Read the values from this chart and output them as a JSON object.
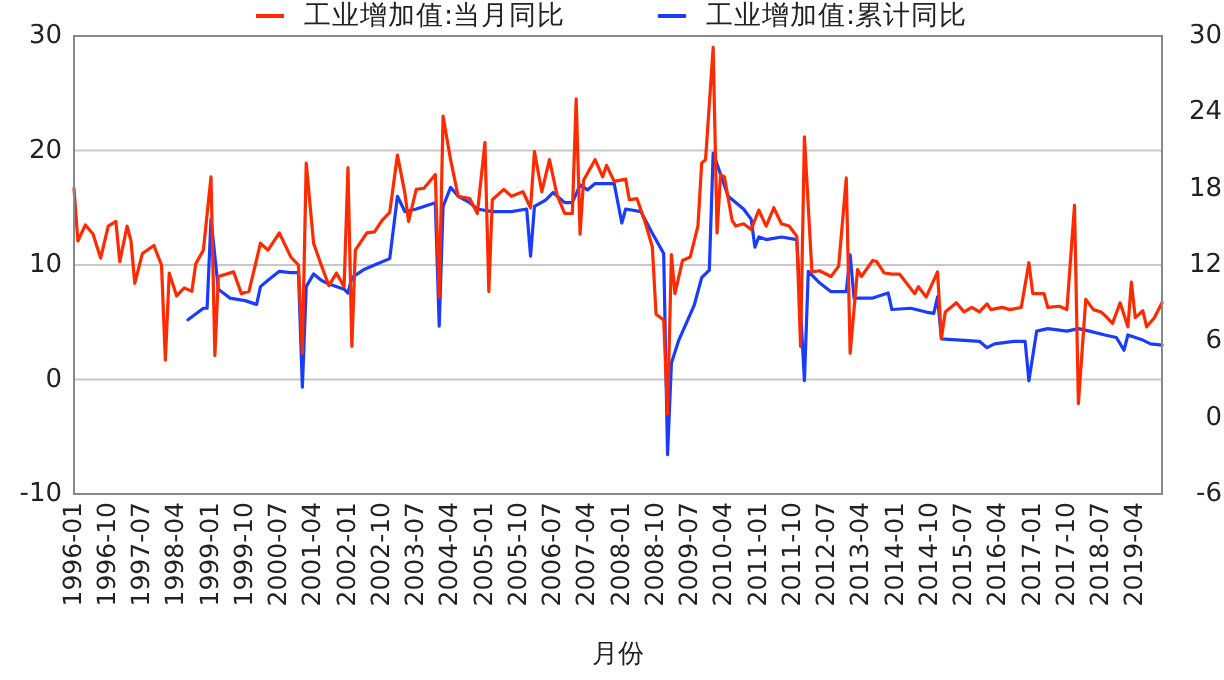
{
  "chart_data": {
    "type": "line",
    "xlabel": "月份",
    "legend": "top",
    "grid": "y",
    "xlim": [
      "1996-01",
      "2019-11"
    ],
    "xticks": [
      "1996-01",
      "1996-10",
      "1997-07",
      "1998-04",
      "1999-01",
      "1999-10",
      "2000-07",
      "2001-04",
      "2002-01",
      "2002-10",
      "2003-07",
      "2004-04",
      "2005-01",
      "2005-10",
      "2006-07",
      "2007-04",
      "2008-01",
      "2008-10",
      "2009-07",
      "2010-04",
      "2011-01",
      "2011-10",
      "2012-07",
      "2013-04",
      "2014-01",
      "2014-10",
      "2015-07",
      "2016-04",
      "2017-01",
      "2017-10",
      "2018-07",
      "2019-04"
    ],
    "ylim": [
      -10,
      30
    ],
    "yticks": [
      -10,
      0,
      10,
      20,
      30
    ],
    "y2lim": [
      -6,
      30
    ],
    "y2ticks": [
      -6,
      0,
      6,
      12,
      18,
      24,
      30
    ],
    "series": [
      {
        "name": "工业增加值:当月同比",
        "color": "#ff2a00",
        "x": [
          "1996-01",
          "1996-02",
          "1996-04",
          "1996-06",
          "1996-08",
          "1996-10",
          "1996-12",
          "1997-01",
          "1997-03",
          "1997-04",
          "1997-05",
          "1997-07",
          "1997-10",
          "1997-12",
          "1998-01",
          "1998-02",
          "1998-04",
          "1998-06",
          "1998-08",
          "1998-09",
          "1998-11",
          "1999-01",
          "1999-02",
          "1999-03",
          "1999-07",
          "1999-09",
          "1999-11",
          "2000-02",
          "2000-04",
          "2000-07",
          "2000-10",
          "2000-12",
          "2001-01",
          "2001-02",
          "2001-04",
          "2001-06",
          "2001-08",
          "2001-10",
          "2001-12",
          "2002-01",
          "2002-02",
          "2002-03",
          "2002-06",
          "2002-08",
          "2002-10",
          "2002-12",
          "2003-02",
          "2003-04",
          "2003-05",
          "2003-07",
          "2003-09",
          "2003-12",
          "2004-01",
          "2004-02",
          "2004-04",
          "2004-06",
          "2004-09",
          "2004-11",
          "2005-01",
          "2005-02",
          "2005-03",
          "2005-06",
          "2005-08",
          "2005-11",
          "2006-01",
          "2006-02",
          "2006-04",
          "2006-06",
          "2006-08",
          "2006-10",
          "2006-12",
          "2007-01",
          "2007-02",
          "2007-03",
          "2007-06",
          "2007-08",
          "2007-09",
          "2007-11",
          "2008-02",
          "2008-03",
          "2008-05",
          "2008-07",
          "2008-09",
          "2008-10",
          "2008-12",
          "2009-01",
          "2009-02",
          "2009-03",
          "2009-05",
          "2009-07",
          "2009-09",
          "2009-10",
          "2009-11",
          "2010-01",
          "2010-02",
          "2010-03",
          "2010-04",
          "2010-06",
          "2010-07",
          "2010-09",
          "2010-11",
          "2011-01",
          "2011-03",
          "2011-05",
          "2011-07",
          "2011-09",
          "2011-11",
          "2011-12",
          "2012-01",
          "2012-03",
          "2012-05",
          "2012-08",
          "2012-10",
          "2012-12",
          "2013-01",
          "2013-03",
          "2013-04",
          "2013-07",
          "2013-08",
          "2013-10",
          "2013-12",
          "2014-02",
          "2014-06",
          "2014-07",
          "2014-09",
          "2014-12",
          "2015-01",
          "2015-02",
          "2015-05",
          "2015-07",
          "2015-09",
          "2015-11",
          "2016-01",
          "2016-02",
          "2016-05",
          "2016-07",
          "2016-10",
          "2016-12",
          "2017-01",
          "2017-04",
          "2017-05",
          "2017-08",
          "2017-10",
          "2017-12",
          "2018-01",
          "2018-03",
          "2018-05",
          "2018-07",
          "2018-08",
          "2018-10",
          "2018-12",
          "2019-02",
          "2019-03",
          "2019-04",
          "2019-06",
          "2019-07",
          "2019-09",
          "2019-11"
        ],
        "values": [
          16.7,
          12.1,
          13.5,
          12.7,
          10.6,
          13.4,
          13.8,
          10.3,
          13.4,
          12.1,
          8.4,
          11.0,
          11.7,
          10.0,
          1.7,
          9.3,
          7.3,
          8.0,
          7.7,
          10.1,
          11.3,
          17.7,
          2.1,
          9.0,
          9.4,
          7.5,
          7.7,
          11.9,
          11.3,
          12.8,
          10.7,
          10.0,
          2.3,
          18.9,
          11.9,
          10.0,
          8.2,
          9.3,
          8.1,
          18.5,
          2.9,
          11.3,
          12.8,
          12.9,
          13.9,
          14.6,
          19.6,
          16.3,
          13.8,
          16.6,
          16.7,
          17.9,
          7.2,
          23.0,
          19.2,
          16.0,
          15.8,
          14.5,
          20.7,
          7.7,
          15.7,
          16.6,
          16.0,
          16.4,
          15.0,
          19.9,
          16.4,
          19.2,
          16.1,
          14.5,
          14.5,
          24.5,
          12.7,
          17.4,
          19.2,
          17.7,
          18.7,
          17.3,
          17.5,
          15.7,
          15.8,
          13.9,
          11.6,
          5.7,
          5.2,
          -3.0,
          10.9,
          7.5,
          10.4,
          10.7,
          13.4,
          18.9,
          19.2,
          29.0,
          12.8,
          17.9,
          17.7,
          13.9,
          13.4,
          13.6,
          13.1,
          14.8,
          13.4,
          15.0,
          13.6,
          13.4,
          12.5,
          2.9,
          21.2,
          9.4,
          9.5,
          9.0,
          9.9,
          17.6,
          2.3,
          9.6,
          9.0,
          10.4,
          10.3,
          9.3,
          9.2,
          9.2,
          7.5,
          8.1,
          7.2,
          9.4,
          3.6,
          5.9,
          6.7,
          5.9,
          6.3,
          5.9,
          6.6,
          6.1,
          6.3,
          6.1,
          6.3,
          10.2,
          7.5,
          7.5,
          6.3,
          6.4,
          6.1,
          15.2,
          -2.1,
          7.0,
          6.1,
          5.9,
          5.6,
          4.9,
          6.7,
          4.6,
          8.5,
          5.4,
          6.0,
          4.6,
          5.4,
          6.7
        ]
      },
      {
        "name": "工业增加值:累计同比",
        "color": "#1a3cff",
        "axis": "y2",
        "x": [
          "1998-07",
          "1998-11",
          "1998-12",
          "1999-01",
          "1999-03",
          "1999-06",
          "1999-10",
          "2000-01",
          "2000-02",
          "2000-04",
          "2000-07",
          "2000-10",
          "2000-12",
          "2001-01",
          "2001-02",
          "2001-04",
          "2001-06",
          "2001-08",
          "2001-12",
          "2002-01",
          "2002-02",
          "2002-05",
          "2002-08",
          "2002-12",
          "2003-02",
          "2003-04",
          "2003-07",
          "2003-12",
          "2004-01",
          "2004-02",
          "2004-04",
          "2004-06",
          "2004-09",
          "2004-11",
          "2005-03",
          "2005-08",
          "2005-12",
          "2006-01",
          "2006-02",
          "2006-05",
          "2006-07",
          "2006-10",
          "2006-12",
          "2007-02",
          "2007-04",
          "2007-06",
          "2007-11",
          "2008-01",
          "2008-02",
          "2008-06",
          "2008-09",
          "2008-12",
          "2009-01",
          "2009-02",
          "2009-04",
          "2009-08",
          "2009-10",
          "2009-12",
          "2010-01",
          "2010-05",
          "2010-09",
          "2010-11",
          "2010-12",
          "2011-01",
          "2011-03",
          "2011-07",
          "2011-11",
          "2012-01",
          "2012-02",
          "2012-05",
          "2012-08",
          "2012-12",
          "2013-01",
          "2013-02",
          "2013-07",
          "2013-11",
          "2013-12",
          "2014-05",
          "2014-09",
          "2014-11",
          "2014-12",
          "2015-01",
          "2015-06",
          "2015-11",
          "2016-01",
          "2016-03",
          "2016-08",
          "2016-11",
          "2016-12",
          "2017-02",
          "2017-05",
          "2017-10",
          "2018-01",
          "2018-04",
          "2018-08",
          "2018-11",
          "2019-01",
          "2019-02",
          "2019-06",
          "2019-08",
          "2019-11"
        ],
        "values": [
          7.7,
          8.6,
          8.6,
          15.6,
          10.1,
          9.4,
          9.2,
          8.9,
          10.3,
          10.8,
          11.5,
          11.4,
          11.4,
          2.4,
          10.3,
          11.3,
          10.8,
          10.5,
          10.1,
          9.8,
          11.0,
          11.6,
          12.0,
          12.5,
          17.4,
          16.2,
          16.4,
          16.9,
          7.2,
          16.6,
          18.1,
          17.4,
          16.9,
          16.4,
          16.2,
          16.2,
          16.4,
          12.7,
          16.6,
          17.1,
          17.7,
          16.9,
          16.9,
          18.3,
          17.9,
          18.4,
          18.4,
          15.3,
          16.4,
          16.2,
          14.5,
          12.9,
          -2.9,
          4.3,
          6.1,
          8.8,
          11.0,
          11.6,
          20.8,
          17.4,
          16.4,
          15.6,
          13.4,
          14.2,
          14.0,
          14.2,
          14.0,
          2.9,
          11.5,
          10.6,
          9.9,
          9.9,
          12.8,
          9.4,
          9.4,
          9.8,
          8.5,
          8.6,
          8.3,
          8.2,
          9.5,
          6.2,
          6.1,
          6.0,
          5.5,
          5.8,
          6.0,
          6.0,
          2.9,
          6.8,
          7.0,
          6.8,
          7.0,
          6.8,
          6.5,
          6.3,
          5.3,
          6.5,
          6.1,
          5.8,
          5.7
        ]
      }
    ]
  }
}
